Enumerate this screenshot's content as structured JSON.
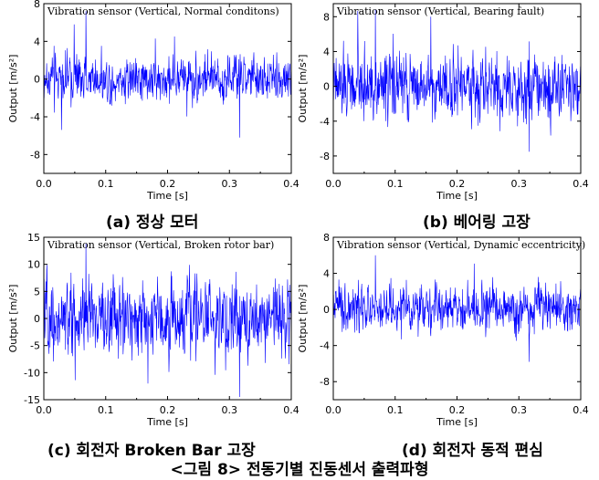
{
  "chart_data": [
    {
      "type": "line",
      "title": "Vibration sensor (Vertical, Normal conditons)",
      "xlabel": "Time [s]",
      "ylabel": "Output [m/s²]",
      "xlim": [
        0.0,
        0.4
      ],
      "ylim": [
        -10,
        8
      ],
      "xticks": [
        "0.0",
        "0.1",
        "0.2",
        "0.3",
        "0.4"
      ],
      "yticks": [
        "-8",
        "-4",
        "0",
        "4",
        "8"
      ],
      "signal": {
        "rms": 1.3,
        "peak_max": 7.2,
        "peak_min": -6.2,
        "points": 800
      },
      "color": "#0000ff",
      "caption": "(a) 정상 모터"
    },
    {
      "type": "line",
      "title": "Vibration sensor (Vertical, Bearing fault)",
      "xlabel": "Time [s]",
      "ylabel": "Output [m/s²]",
      "xlim": [
        0.0,
        0.4
      ],
      "ylim": [
        -10,
        9.5
      ],
      "xticks": [
        "0.0",
        "0.1",
        "0.2",
        "0.3",
        "0.4"
      ],
      "yticks": [
        "-8",
        "-4",
        "0",
        "4",
        "8"
      ],
      "signal": {
        "rms": 2.0,
        "peak_max": 8.8,
        "peak_min": -7.5,
        "points": 800
      },
      "color": "#0000ff",
      "caption": "(b) 베어링 고장"
    },
    {
      "type": "line",
      "title": "Vibration sensor (Vertical, Broken rotor bar)",
      "xlabel": "Time [s]",
      "ylabel": "Output [m/s²]",
      "xlim": [
        0.0,
        0.4
      ],
      "ylim": [
        -15,
        15
      ],
      "xticks": [
        "0.0",
        "0.1",
        "0.2",
        "0.3",
        "0.4"
      ],
      "yticks": [
        "-15",
        "-10",
        "-5",
        "0",
        "5",
        "10",
        "15"
      ],
      "signal": {
        "rms": 3.8,
        "peak_max": 13.8,
        "peak_min": -14.5,
        "points": 800
      },
      "color": "#0000ff",
      "caption": "(c) 회전자 Broken Bar 고장"
    },
    {
      "type": "line",
      "title": "Vibration sensor (Vertical, Dynamic eccentricity)",
      "xlabel": "Time [s]",
      "ylabel": "Output [m/s²]",
      "xlim": [
        0.0,
        0.4
      ],
      "ylim": [
        -10,
        8
      ],
      "xticks": [
        "0.0",
        "0.1",
        "0.2",
        "0.3",
        "0.4"
      ],
      "yticks": [
        "-8",
        "-4",
        "0",
        "4",
        "8"
      ],
      "signal": {
        "rms": 1.4,
        "peak_max": 6.0,
        "peak_min": -5.8,
        "points": 800
      },
      "color": "#0000ff",
      "caption": "(d) 회전자 동적 편심"
    }
  ],
  "figure_caption": "<그림 8> 전동기별 진동센서 출력파형"
}
